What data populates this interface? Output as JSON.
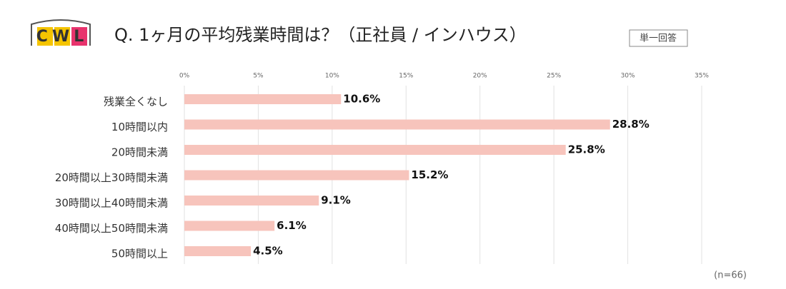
{
  "chart_data": {
    "type": "bar",
    "orientation": "horizontal",
    "logo": "CWL",
    "title": "Q. 1ヶ月の平均残業時間は？（正社員 / インハウス）",
    "badge": "単一回答",
    "note": "(n=66)",
    "categories": [
      "残業全くなし",
      "10時間以内",
      "20時間未満",
      "20時間以上30時間未満",
      "30時間以上40時間未満",
      "40時間以上50時間未満",
      "50時間以上"
    ],
    "values": [
      10.6,
      28.8,
      25.8,
      15.2,
      9.1,
      6.1,
      4.5
    ],
    "value_labels": [
      "10.6%",
      "28.8%",
      "25.8%",
      "15.2%",
      "9.1%",
      "6.1%",
      "4.5%"
    ],
    "color": "#f7c4bc",
    "xlim": [
      0,
      35
    ],
    "xticks": [
      {
        "value": 0,
        "label": "0%"
      },
      {
        "value": 5,
        "label": "5%"
      },
      {
        "value": 10,
        "label": "10%"
      },
      {
        "value": 15,
        "label": "15%"
      },
      {
        "value": 20,
        "label": "20%"
      },
      {
        "value": 25,
        "label": "25%"
      },
      {
        "value": 30,
        "label": "30%"
      },
      {
        "value": 35,
        "label": "35%"
      }
    ],
    "grid": true
  }
}
